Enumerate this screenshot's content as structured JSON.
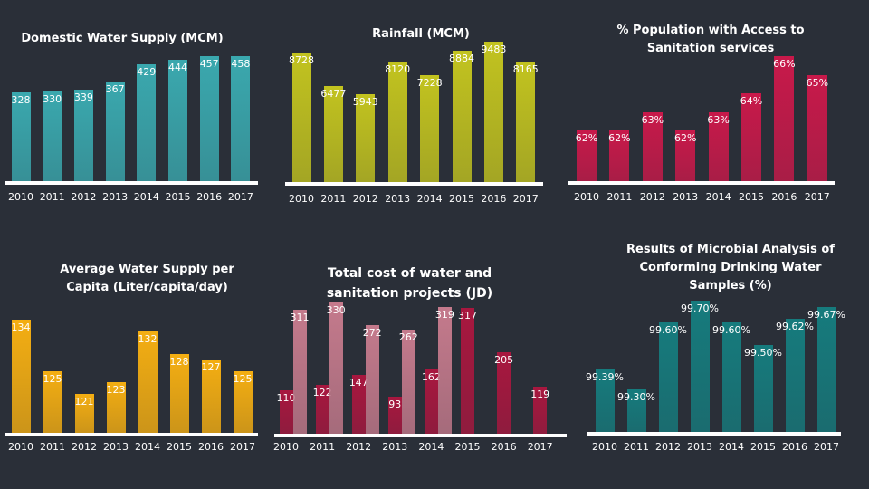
{
  "chart_data": [
    {
      "id": "domestic",
      "type": "bar",
      "title": "Domestic Water Supply (MCM)",
      "categories": [
        "2010",
        "2011",
        "2012",
        "2013",
        "2014",
        "2015",
        "2016",
        "2017"
      ],
      "values": [
        328,
        330,
        339,
        367,
        429,
        444,
        457,
        458
      ],
      "labels": [
        "328",
        "330",
        "339",
        "367",
        "429",
        "444",
        "457",
        "458"
      ],
      "color": "#3aa8ae",
      "grid": false
    },
    {
      "id": "rainfall",
      "type": "bar",
      "title": "Rainfall (MCM)",
      "categories": [
        "2010",
        "2011",
        "2012",
        "2013",
        "2014",
        "2015",
        "2016",
        "2017"
      ],
      "values": [
        8728,
        6477,
        5943,
        8120,
        7228,
        8884,
        9483,
        8165
      ],
      "labels": [
        "8728",
        "6477",
        "5943",
        "8120",
        "7228",
        "8884",
        "9483",
        "8165"
      ],
      "color": "#c2c31f",
      "grid": false
    },
    {
      "id": "sanitation",
      "type": "bar",
      "title": "% Population with Access to Sanitation services",
      "categories": [
        "2010",
        "2011",
        "2012",
        "2013",
        "2014",
        "2015",
        "2016",
        "2017"
      ],
      "values": [
        62,
        62,
        63,
        62,
        63,
        64,
        66,
        65
      ],
      "labels": [
        "62%",
        "62%",
        "63%",
        "62%",
        "63%",
        "64%",
        "66%",
        "65%"
      ],
      "color": "#c8194a",
      "grid": false
    },
    {
      "id": "percapita",
      "type": "bar",
      "title": "Average Water Supply per Capita (Liter/capita/day)",
      "categories": [
        "2010",
        "2011",
        "2012",
        "2013",
        "2014",
        "2015",
        "2016",
        "2017"
      ],
      "values": [
        134,
        125,
        121,
        123,
        132,
        128,
        127,
        125
      ],
      "labels": [
        "134",
        "125",
        "121",
        "123",
        "132",
        "128",
        "127",
        "125"
      ],
      "color": "#f4ae12",
      "grid": false
    },
    {
      "id": "cost",
      "type": "bar",
      "title": "Total cost of water and sanitation projects (JD)",
      "categories": [
        "2010",
        "2011",
        "2012",
        "2013",
        "2014",
        "2015",
        "2016",
        "2017"
      ],
      "series": [
        {
          "values": [
            110,
            122,
            147,
            93,
            162,
            317,
            205,
            119
          ],
          "labels": [
            "110",
            "122",
            "147",
            "93",
            "162",
            "317",
            "205",
            "119"
          ],
          "color": "#a8173f"
        },
        {
          "values": [
            311,
            330,
            272,
            262,
            319,
            null,
            null,
            null
          ],
          "labels": [
            "311",
            "330",
            "272",
            "262",
            "319",
            "",
            "",
            ""
          ],
          "color": "#c47a8c"
        }
      ],
      "grid": false
    },
    {
      "id": "microbial",
      "type": "bar",
      "title": "Results of Microbial Analysis of Conforming Drinking Water Samples (%)",
      "categories": [
        "2010",
        "2011",
        "2012",
        "2013",
        "2014",
        "2015",
        "2016",
        "2017"
      ],
      "values": [
        99.39,
        99.3,
        99.6,
        99.7,
        99.6,
        99.5,
        99.62,
        99.67
      ],
      "labels": [
        "99.39%",
        "99.30%",
        "99.60%",
        "99.70%",
        "99.60%",
        "99.50%",
        "99.62%",
        "99.67%"
      ],
      "color": "#167b7d",
      "grid": false
    }
  ]
}
